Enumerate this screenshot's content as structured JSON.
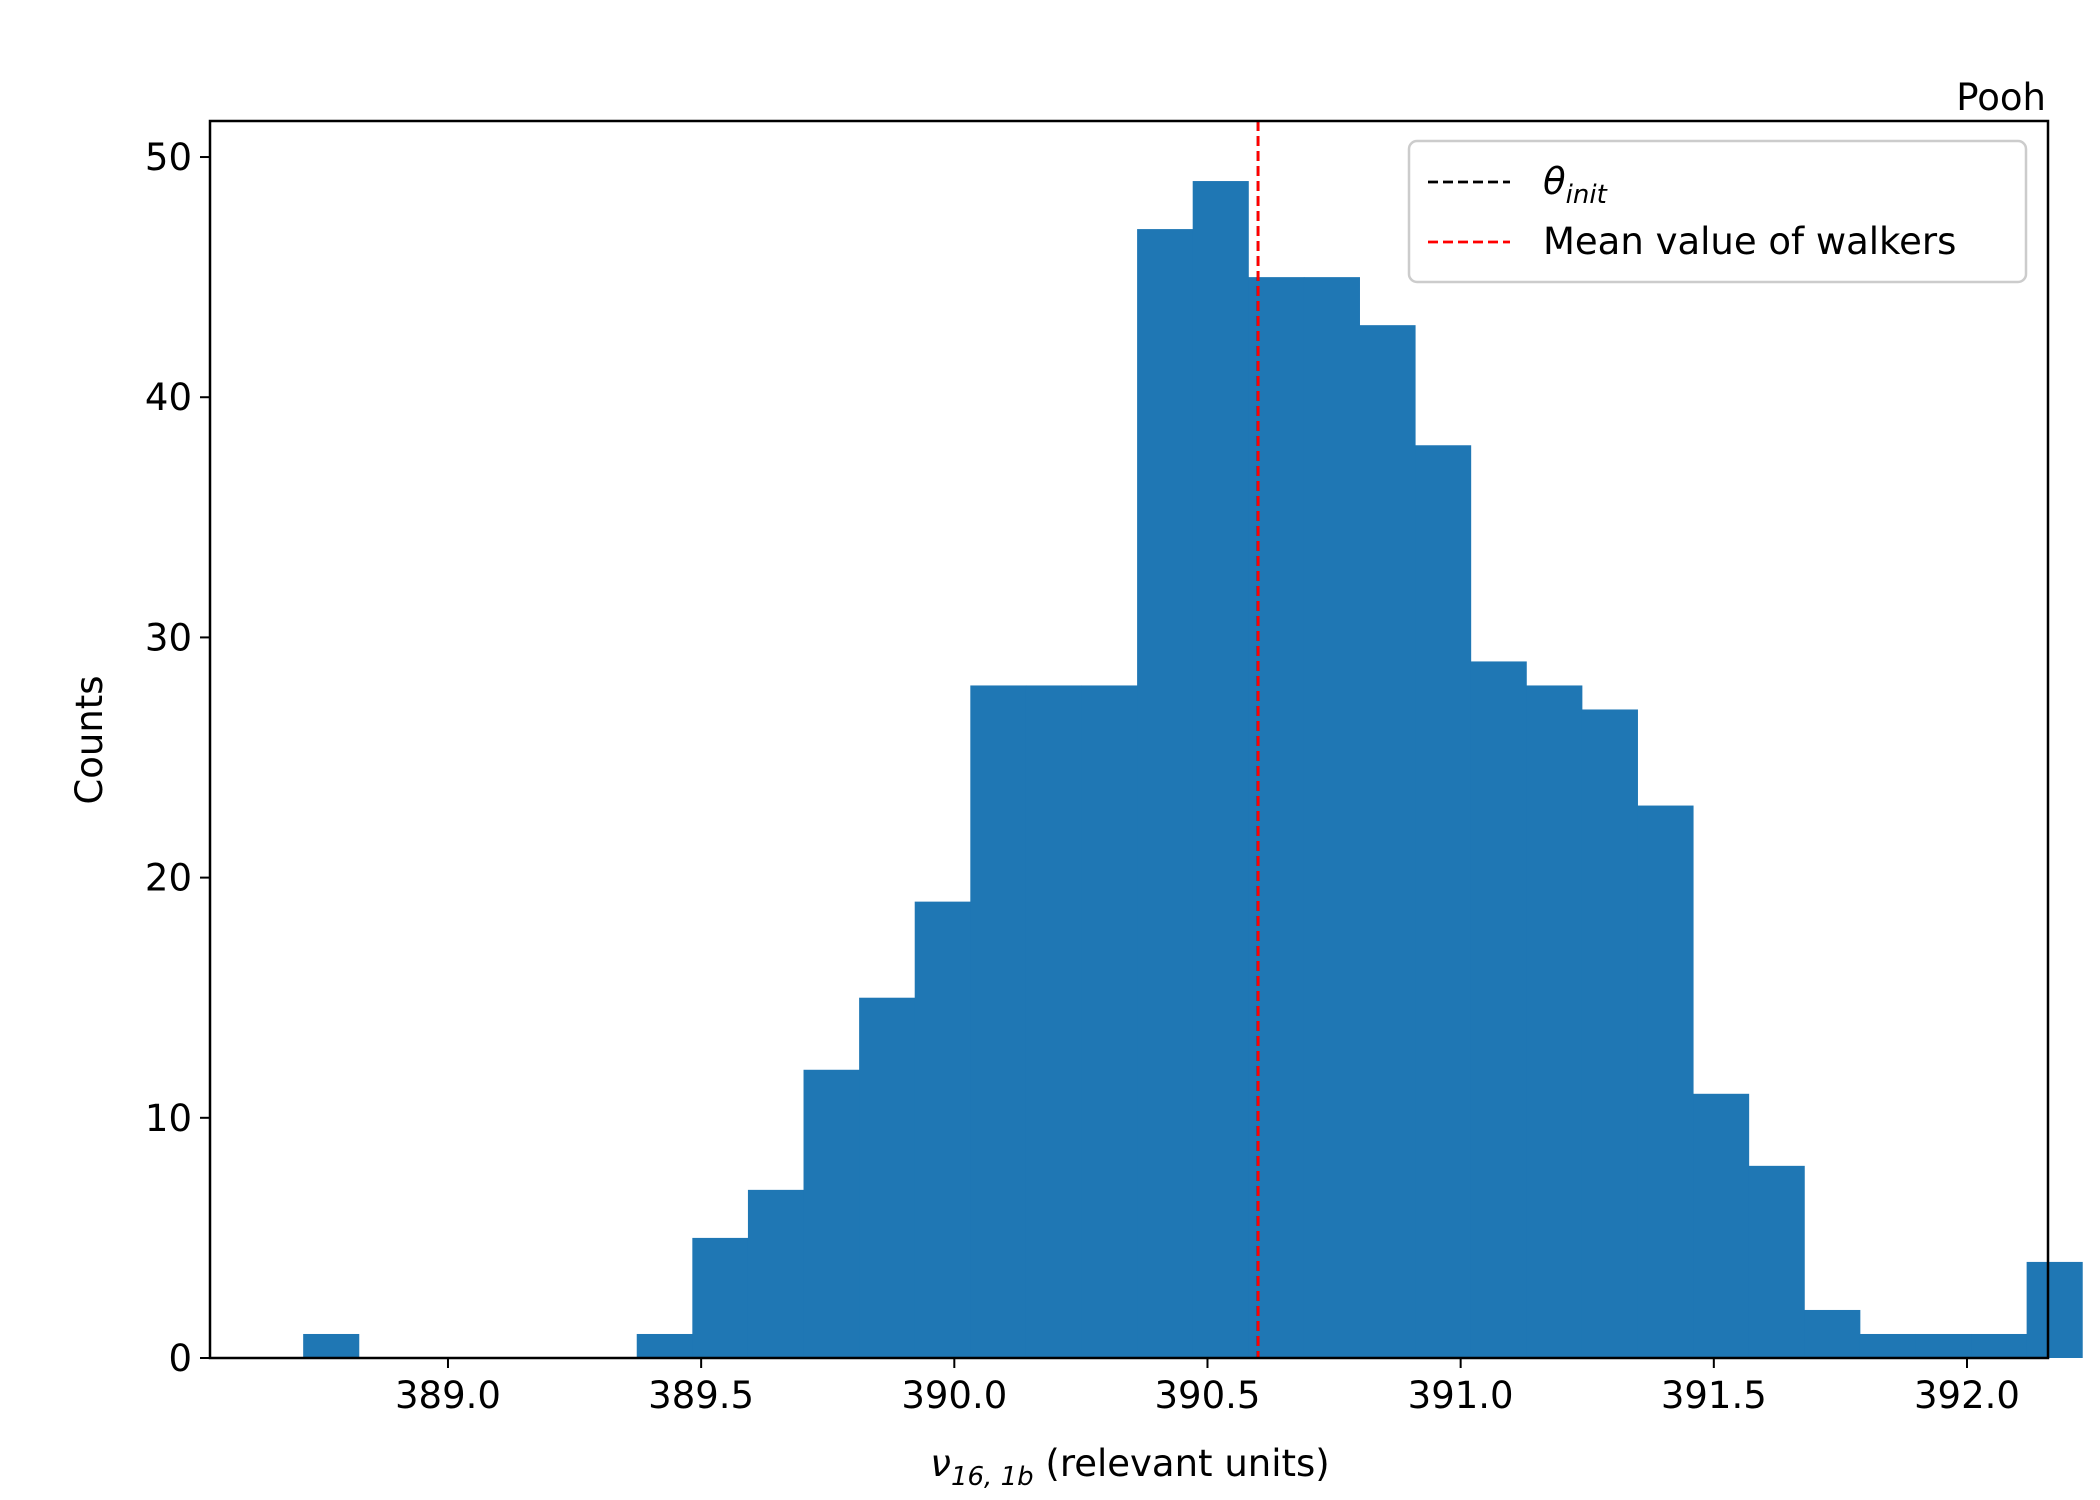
{
  "chart_data": {
    "type": "histogram",
    "corner_label": "Pooh",
    "xlabel": {
      "symbol": "ν",
      "subscript": "16, 1b",
      "text": " (relevant units)"
    },
    "ylabel": "Counts",
    "xlim": [
      388.53,
      392.16
    ],
    "ylim": [
      0,
      51.5
    ],
    "x_ticks": [
      389.0,
      389.5,
      390.0,
      390.5,
      391.0,
      391.5,
      392.0
    ],
    "x_tick_labels": [
      "389.0",
      "389.5",
      "390.0",
      "390.5",
      "391.0",
      "391.5",
      "392.0"
    ],
    "y_ticks": [
      0,
      10,
      20,
      30,
      40,
      50
    ],
    "y_tick_labels": [
      "0",
      "10",
      "20",
      "30",
      "40",
      "50"
    ],
    "bin_start": 388.714,
    "bin_width": 0.1098,
    "counts": [
      1,
      0,
      0,
      0,
      0,
      0,
      1,
      5,
      7,
      12,
      15,
      19,
      28,
      28,
      28,
      47,
      49,
      45,
      45,
      43,
      38,
      29,
      28,
      27,
      23,
      11,
      8,
      2,
      1,
      1,
      1,
      4
    ],
    "bar_color": "#1f77b4",
    "vlines": [
      {
        "name": "θ",
        "subscript": "init",
        "x": 390.6,
        "color": "#000000",
        "style": "dashed"
      },
      {
        "name": "Mean value of walkers",
        "x": 390.6,
        "color": "#ff0000",
        "style": "dashed"
      }
    ],
    "legend_position": "upper-right",
    "grid": false
  }
}
